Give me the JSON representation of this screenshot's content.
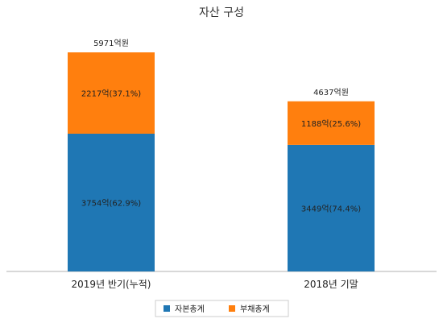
{
  "chart_data": {
    "type": "bar",
    "stacked": true,
    "title": "자산 구성",
    "xlabel": "",
    "ylabel": "",
    "categories": [
      "2019년 반기(누적)",
      "2018년 기말"
    ],
    "totals": [
      5971,
      4637
    ],
    "total_labels": [
      "5971억원",
      "4637억원"
    ],
    "series": [
      {
        "name": "자본총계",
        "color": "#1f77b4",
        "values": [
          3754,
          3449
        ],
        "labels": [
          "3754억(62.9%)",
          "3449억(74.4%)"
        ]
      },
      {
        "name": "부채총계",
        "color": "#ff7f0e",
        "values": [
          2217,
          1188
        ],
        "labels": [
          "2217억(37.1%)",
          "1188억(25.6%)"
        ]
      }
    ],
    "ylim": [
      0,
      5971
    ],
    "grid": false,
    "legend_position": "bottom-center"
  }
}
